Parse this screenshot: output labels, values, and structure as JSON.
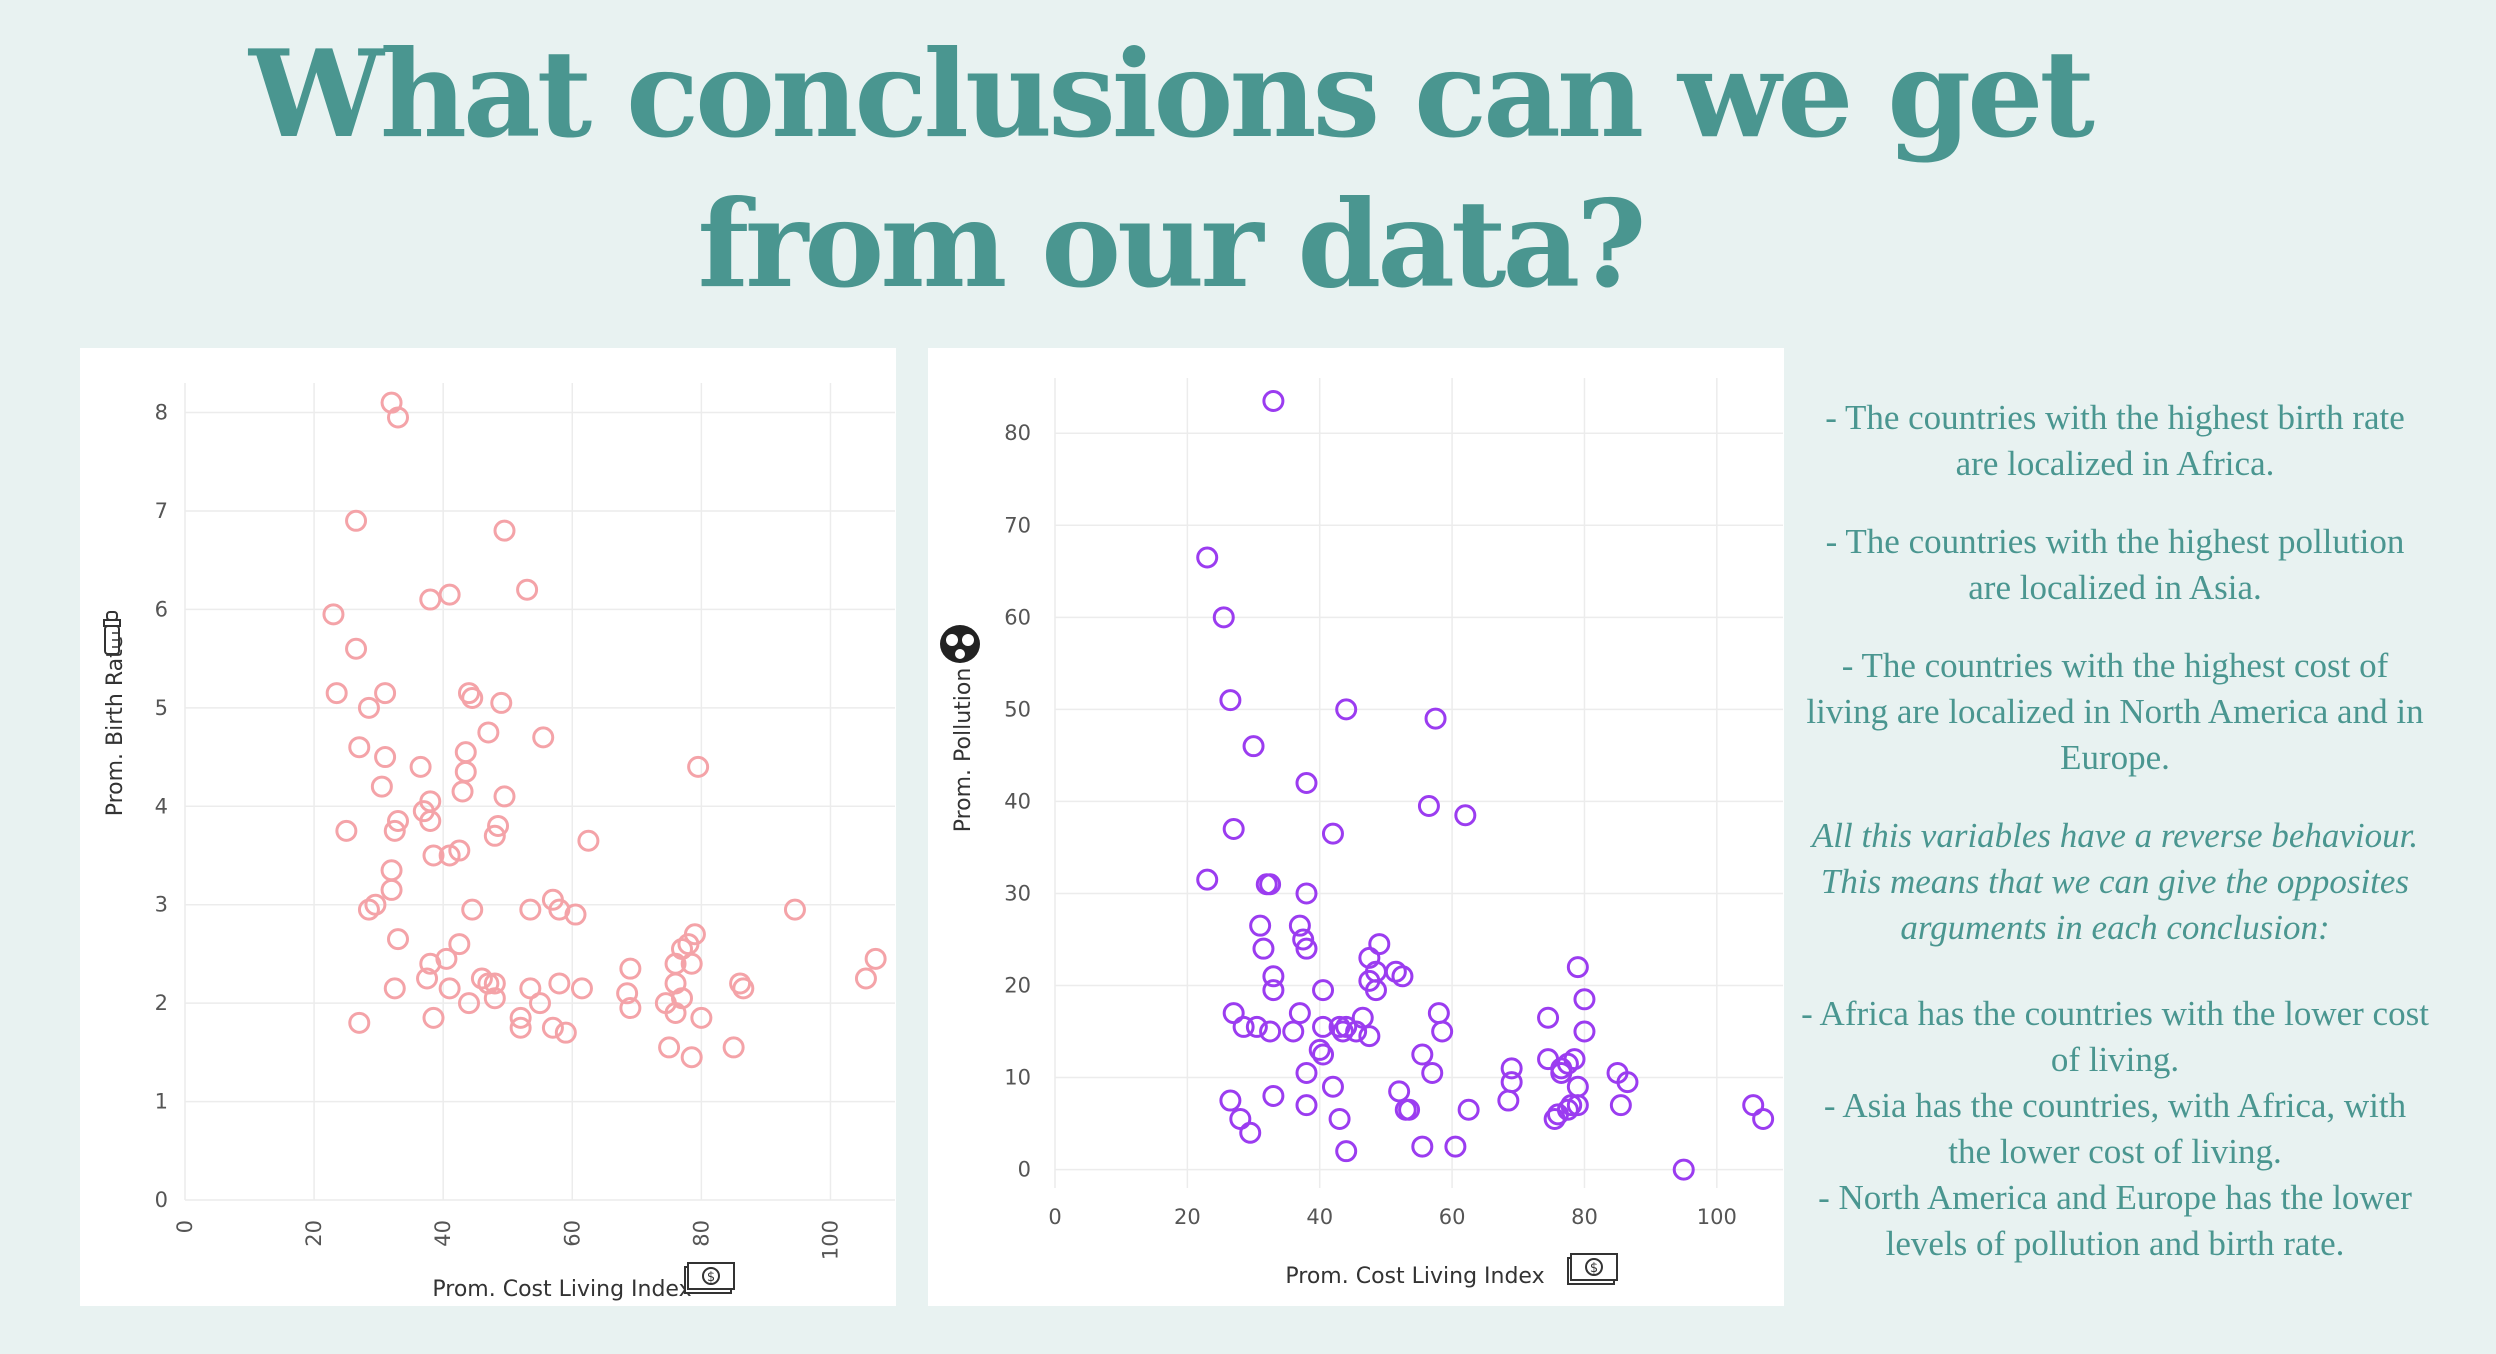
{
  "title_line1": "What conclusions can we get",
  "title_line2": "from our data?",
  "notes": {
    "p1": "- The countries with the highest birth rate are localized in Africa.",
    "p2": "- The countries with the highest pollution are localized in Asia.",
    "p3": "- The countries with the highest cost of living are localized in North America and in Europe.",
    "p4": "All this variables have a reverse behaviour. This means that we can give the opposites arguments in each conclusion:",
    "p5": "- Africa has the countries with the lower cost of living.",
    "p6": "- Asia has the countries, with Africa, with the lower cost of living.",
    "p7": "- North America and Europe has the lower levels of pollution and birth rate."
  },
  "colors": {
    "accent": "#4a9690",
    "left_marker": "#f4a3a8",
    "right_marker": "#9b3cf0",
    "grid": "#ececec"
  },
  "chart_data": [
    {
      "type": "scatter",
      "xlabel": "Prom. Cost Living Index",
      "ylabel": "Prom. Birth Rate",
      "xlabel_icon": "money-icon",
      "ylabel_icon": "baby-bottle-icon",
      "xlim": [
        0,
        110
      ],
      "ylim": [
        0,
        8.3
      ],
      "xticks": [
        0,
        20,
        40,
        60,
        80,
        100
      ],
      "yticks": [
        0,
        1,
        2,
        3,
        4,
        5,
        6,
        7,
        8
      ],
      "x_tick_rotation": "vertical",
      "grid": true,
      "marker_color": "#f4a3a8",
      "points": [
        [
          32,
          8.1
        ],
        [
          33,
          7.95
        ],
        [
          26.5,
          6.9
        ],
        [
          49.5,
          6.8
        ],
        [
          53,
          6.2
        ],
        [
          41,
          6.15
        ],
        [
          38,
          6.1
        ],
        [
          23,
          5.95
        ],
        [
          26.5,
          5.6
        ],
        [
          23.5,
          5.15
        ],
        [
          31,
          5.15
        ],
        [
          44,
          5.15
        ],
        [
          44.5,
          5.1
        ],
        [
          49,
          5.05
        ],
        [
          28.5,
          5.0
        ],
        [
          47,
          4.75
        ],
        [
          55.5,
          4.7
        ],
        [
          27,
          4.6
        ],
        [
          31,
          4.5
        ],
        [
          43.5,
          4.55
        ],
        [
          79.5,
          4.4
        ],
        [
          36.5,
          4.4
        ],
        [
          43.5,
          4.35
        ],
        [
          30.5,
          4.2
        ],
        [
          43,
          4.15
        ],
        [
          49.5,
          4.1
        ],
        [
          38,
          4.05
        ],
        [
          37,
          3.95
        ],
        [
          38,
          3.85
        ],
        [
          33,
          3.85
        ],
        [
          48.5,
          3.8
        ],
        [
          25,
          3.75
        ],
        [
          32.5,
          3.75
        ],
        [
          48,
          3.7
        ],
        [
          62.5,
          3.65
        ],
        [
          42.5,
          3.55
        ],
        [
          38.5,
          3.5
        ],
        [
          41,
          3.5
        ],
        [
          32,
          3.35
        ],
        [
          32,
          3.15
        ],
        [
          57,
          3.05
        ],
        [
          29.5,
          3.0
        ],
        [
          28.5,
          2.95
        ],
        [
          44.5,
          2.95
        ],
        [
          53.5,
          2.95
        ],
        [
          58,
          2.95
        ],
        [
          60.5,
          2.9
        ],
        [
          94.5,
          2.95
        ],
        [
          79,
          2.7
        ],
        [
          78,
          2.6
        ],
        [
          77,
          2.55
        ],
        [
          33,
          2.65
        ],
        [
          42.5,
          2.6
        ],
        [
          107,
          2.45
        ],
        [
          40.5,
          2.45
        ],
        [
          76,
          2.4
        ],
        [
          78.5,
          2.4
        ],
        [
          38,
          2.4
        ],
        [
          69,
          2.35
        ],
        [
          37.5,
          2.25
        ],
        [
          46,
          2.25
        ],
        [
          47,
          2.2
        ],
        [
          48,
          2.2
        ],
        [
          76,
          2.2
        ],
        [
          86,
          2.2
        ],
        [
          86.5,
          2.15
        ],
        [
          105.5,
          2.25
        ],
        [
          32.5,
          2.15
        ],
        [
          41,
          2.15
        ],
        [
          53.5,
          2.15
        ],
        [
          58,
          2.2
        ],
        [
          61.5,
          2.15
        ],
        [
          68.5,
          2.1
        ],
        [
          48,
          2.05
        ],
        [
          44,
          2.0
        ],
        [
          55,
          2.0
        ],
        [
          74.5,
          2.0
        ],
        [
          77,
          2.05
        ],
        [
          69,
          1.95
        ],
        [
          76,
          1.9
        ],
        [
          38.5,
          1.85
        ],
        [
          52,
          1.85
        ],
        [
          80,
          1.85
        ],
        [
          52,
          1.75
        ],
        [
          57,
          1.75
        ],
        [
          59,
          1.7
        ],
        [
          27,
          1.8
        ],
        [
          75,
          1.55
        ],
        [
          85,
          1.55
        ],
        [
          78.5,
          1.45
        ]
      ]
    },
    {
      "type": "scatter",
      "xlabel": "Prom. Cost Living Index",
      "ylabel": "Prom. Pollution",
      "xlabel_icon": "money-icon",
      "ylabel_icon": "gas-mask-icon",
      "xlim": [
        0,
        110
      ],
      "ylim": [
        -2,
        86
      ],
      "xticks": [
        0,
        20,
        40,
        60,
        80,
        100
      ],
      "yticks": [
        0,
        10,
        20,
        30,
        40,
        50,
        60,
        70,
        80
      ],
      "grid": true,
      "marker_color": "#9b3cf0",
      "points": [
        [
          33,
          83.5
        ],
        [
          23,
          66.5
        ],
        [
          25.5,
          60
        ],
        [
          26.5,
          51
        ],
        [
          44,
          50
        ],
        [
          57.5,
          49
        ],
        [
          30,
          46
        ],
        [
          38,
          42
        ],
        [
          56.5,
          39.5
        ],
        [
          62,
          38.5
        ],
        [
          27,
          37
        ],
        [
          42,
          36.5
        ],
        [
          23,
          31.5
        ],
        [
          32,
          31
        ],
        [
          32.5,
          31
        ],
        [
          38,
          30
        ],
        [
          31,
          26.5
        ],
        [
          37,
          26.5
        ],
        [
          49,
          24.5
        ],
        [
          31.5,
          24
        ],
        [
          38,
          24
        ],
        [
          37.5,
          25
        ],
        [
          47.5,
          23
        ],
        [
          51.5,
          21.5
        ],
        [
          48.5,
          21.5
        ],
        [
          47.5,
          20.5
        ],
        [
          52.5,
          21
        ],
        [
          33,
          21
        ],
        [
          79,
          22
        ],
        [
          33,
          19.5
        ],
        [
          40.5,
          19.5
        ],
        [
          48.5,
          19.5
        ],
        [
          80,
          18.5
        ],
        [
          27,
          17
        ],
        [
          37,
          17
        ],
        [
          58,
          17
        ],
        [
          46.5,
          16.5
        ],
        [
          43,
          15.5
        ],
        [
          74.5,
          16.5
        ],
        [
          28.5,
          15.5
        ],
        [
          30.5,
          15.5
        ],
        [
          32.5,
          15
        ],
        [
          36,
          15
        ],
        [
          40.5,
          15.5
        ],
        [
          43.5,
          15
        ],
        [
          44,
          15.5
        ],
        [
          45.5,
          15
        ],
        [
          47.5,
          14.5
        ],
        [
          58.5,
          15
        ],
        [
          80,
          15
        ],
        [
          40,
          13
        ],
        [
          40.5,
          12.5
        ],
        [
          55.5,
          12.5
        ],
        [
          74.5,
          12
        ],
        [
          77.5,
          11.5
        ],
        [
          76.5,
          11
        ],
        [
          78.5,
          12
        ],
        [
          69,
          11
        ],
        [
          38,
          10.5
        ],
        [
          57,
          10.5
        ],
        [
          85,
          10.5
        ],
        [
          69,
          9.5
        ],
        [
          76.5,
          10.5
        ],
        [
          79,
          9
        ],
        [
          86.5,
          9.5
        ],
        [
          42,
          9
        ],
        [
          52,
          8.5
        ],
        [
          33,
          8
        ],
        [
          26.5,
          7.5
        ],
        [
          38,
          7
        ],
        [
          53,
          6.5
        ],
        [
          53.5,
          6.5
        ],
        [
          62.5,
          6.5
        ],
        [
          68.5,
          7.5
        ],
        [
          78,
          7
        ],
        [
          79,
          7
        ],
        [
          85.5,
          7
        ],
        [
          77.5,
          6.5
        ],
        [
          28,
          5.5
        ],
        [
          43,
          5.5
        ],
        [
          75.5,
          5.5
        ],
        [
          76,
          6
        ],
        [
          105.5,
          7
        ],
        [
          107,
          5.5
        ],
        [
          29.5,
          4
        ],
        [
          44,
          2
        ],
        [
          55.5,
          2.5
        ],
        [
          60.5,
          2.5
        ],
        [
          95,
          0
        ]
      ]
    }
  ]
}
